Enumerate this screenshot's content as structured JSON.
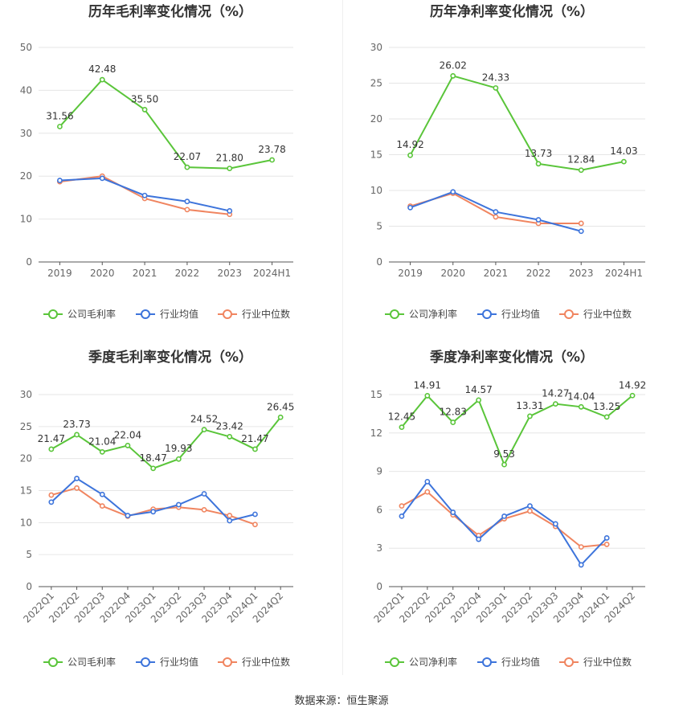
{
  "chart_data": [
    {
      "type": "line",
      "title": "历年毛利率变化情况（%）",
      "categories": [
        "2019",
        "2020",
        "2021",
        "2022",
        "2023",
        "2024H1"
      ],
      "ylim": [
        0,
        50
      ],
      "yticks": [
        0,
        10,
        20,
        30,
        40,
        50
      ],
      "series": [
        {
          "name": "公司毛利率",
          "color": "#5ac53a",
          "labeled": true,
          "values": [
            31.56,
            42.48,
            35.5,
            22.07,
            21.8,
            23.78
          ]
        },
        {
          "name": "行业均值",
          "color": "#3d74db",
          "labeled": false,
          "values": [
            19.0,
            19.5,
            15.5,
            14.1,
            11.9,
            null
          ]
        },
        {
          "name": "行业中位数",
          "color": "#f08560",
          "labeled": false,
          "values": [
            18.7,
            20.0,
            14.8,
            12.2,
            11.1,
            null
          ]
        }
      ],
      "legend": "bottom",
      "grid": true
    },
    {
      "type": "line",
      "title": "历年净利率变化情况（%）",
      "categories": [
        "2019",
        "2020",
        "2021",
        "2022",
        "2023",
        "2024H1"
      ],
      "ylim": [
        0,
        30
      ],
      "yticks": [
        0,
        5,
        10,
        15,
        20,
        25,
        30
      ],
      "series": [
        {
          "name": "公司净利率",
          "color": "#5ac53a",
          "labeled": true,
          "values": [
            14.92,
            26.02,
            24.33,
            13.73,
            12.84,
            14.03
          ]
        },
        {
          "name": "行业均值",
          "color": "#3d74db",
          "labeled": false,
          "values": [
            7.6,
            9.8,
            7.0,
            5.9,
            4.3,
            null
          ]
        },
        {
          "name": "行业中位数",
          "color": "#f08560",
          "labeled": false,
          "values": [
            7.8,
            9.6,
            6.3,
            5.4,
            5.4,
            null
          ]
        }
      ],
      "legend": "bottom",
      "grid": true
    },
    {
      "type": "line",
      "title": "季度毛利率变化情况（%）",
      "categories": [
        "2022Q1",
        "2022Q2",
        "2022Q3",
        "2022Q4",
        "2023Q1",
        "2023Q2",
        "2023Q3",
        "2023Q4",
        "2024Q1",
        "2024Q2"
      ],
      "ylim": [
        0,
        30
      ],
      "yticks": [
        0,
        5,
        10,
        15,
        20,
        25,
        30
      ],
      "series": [
        {
          "name": "公司毛利率",
          "color": "#5ac53a",
          "labeled": true,
          "values": [
            21.47,
            23.73,
            21.04,
            22.04,
            18.47,
            19.93,
            24.52,
            23.42,
            21.47,
            26.45
          ]
        },
        {
          "name": "行业均值",
          "color": "#3d74db",
          "labeled": false,
          "values": [
            13.2,
            16.9,
            14.4,
            11.1,
            11.7,
            12.8,
            14.5,
            10.3,
            11.3,
            null
          ]
        },
        {
          "name": "行业中位数",
          "color": "#f08560",
          "labeled": false,
          "values": [
            14.3,
            15.4,
            12.6,
            11.0,
            12.1,
            12.4,
            12.0,
            11.1,
            9.7,
            null
          ]
        }
      ],
      "legend": "bottom",
      "grid": true
    },
    {
      "type": "line",
      "title": "季度净利率变化情况（%）",
      "categories": [
        "2022Q1",
        "2022Q2",
        "2022Q3",
        "2022Q4",
        "2023Q1",
        "2023Q2",
        "2023Q3",
        "2023Q4",
        "2024Q1",
        "2024Q2"
      ],
      "ylim": [
        0,
        15
      ],
      "yticks": [
        0,
        3,
        6,
        9,
        12,
        15
      ],
      "series": [
        {
          "name": "公司净利率",
          "color": "#5ac53a",
          "labeled": true,
          "values": [
            12.45,
            14.91,
            12.83,
            14.57,
            9.53,
            13.31,
            14.27,
            14.04,
            13.25,
            14.92
          ]
        },
        {
          "name": "行业均值",
          "color": "#3d74db",
          "labeled": false,
          "values": [
            5.5,
            8.2,
            5.8,
            3.7,
            5.5,
            6.3,
            4.9,
            1.7,
            3.8,
            null
          ]
        },
        {
          "name": "行业中位数",
          "color": "#f08560",
          "labeled": false,
          "values": [
            6.3,
            7.4,
            5.6,
            4.0,
            5.3,
            5.9,
            4.7,
            3.1,
            3.3,
            null
          ]
        }
      ],
      "legend": "bottom",
      "grid": true
    }
  ],
  "footer": {
    "source": "数据来源：恒生聚源"
  }
}
